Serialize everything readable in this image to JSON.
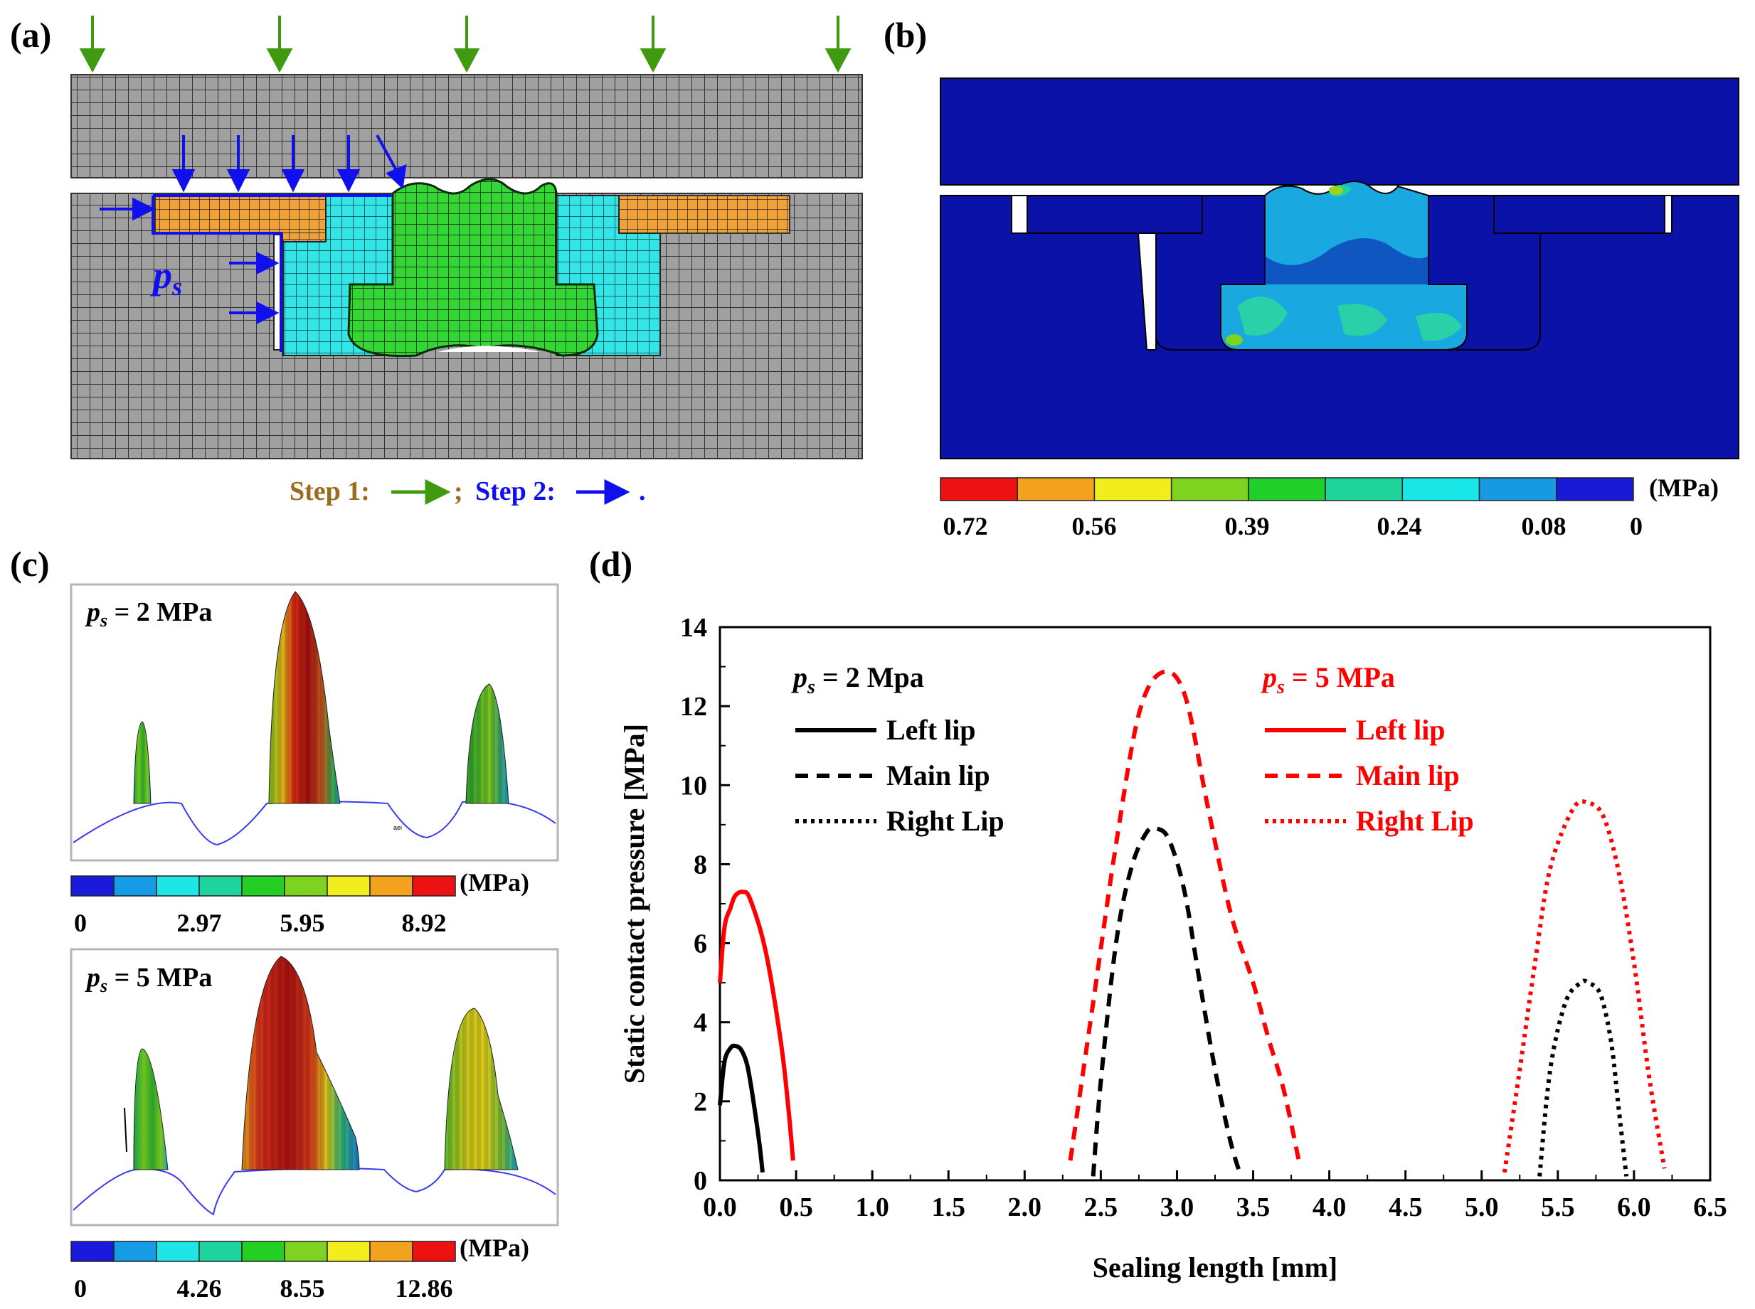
{
  "panels": {
    "a": {
      "label": "(a)",
      "pressure_symbol": "p",
      "pressure_subscript": "s",
      "step1": "Step 1:",
      "sep": ";",
      "step2": "Step 2:",
      "end": ".",
      "colors": {
        "mesh_gray": "#9a9a9a",
        "orange": "#f0a23a",
        "cyan": "#32e6e8",
        "green": "#2fd62f",
        "arrow_green": "#3f9a10",
        "arrow_blue": "#1010ee",
        "step1_text": "#9b6a1a"
      }
    },
    "b": {
      "label": "(b)",
      "unit": "(MPa)",
      "ticks": [
        "0.72",
        "0.56",
        "0.39",
        "0.24",
        "0.08",
        "0"
      ],
      "legend_colors": [
        "#ee1111",
        "#f2a21d",
        "#f2ee1e",
        "#7ed321",
        "#22cf2a",
        "#1ed49b",
        "#19e6e6",
        "#179ae2",
        "#1818d6"
      ]
    },
    "c": {
      "label": "(c)",
      "top": {
        "p": "p",
        "s": "s",
        "eq": " = 2 MPa",
        "unit": "(MPa)",
        "ticks": [
          "0",
          "2.97",
          "5.95",
          "8.92"
        ],
        "tiny": "aei"
      },
      "bottom": {
        "p": "p",
        "s": "s",
        "eq": " = 5 MPa",
        "unit": "(MPa)",
        "ticks": [
          "0",
          "4.26",
          "8.55",
          "12.86"
        ]
      },
      "legend_colors": [
        "#1a1adc",
        "#169ce6",
        "#1ee6e6",
        "#1ed49e",
        "#22cf22",
        "#7ed321",
        "#f2ee1e",
        "#f2a21d",
        "#ee1111"
      ]
    },
    "d": {
      "label": "(d)",
      "legend_left": {
        "p": "p",
        "s": "s",
        "eq": " = 2 Mpa",
        "items": [
          "Left lip",
          "Main lip",
          "Right Lip"
        ]
      },
      "legend_right": {
        "p": "p",
        "s": "s",
        "eq": " = 5 MPa",
        "items": [
          "Left lip",
          "Main lip",
          "Right Lip"
        ]
      }
    }
  },
  "chart_data": {
    "type": "line",
    "title": "",
    "xlabel": "Sealing length [mm]",
    "ylabel": "Static contact pressure [MPa]",
    "xlim": [
      0,
      6.5
    ],
    "ylim": [
      0,
      14
    ],
    "xticks": [
      "0.0",
      "0.5",
      "1.0",
      "1.5",
      "2.0",
      "2.5",
      "3.0",
      "3.5",
      "4.0",
      "4.5",
      "5.0",
      "5.5",
      "6.0",
      "6.5"
    ],
    "yticks": [
      "0",
      "2",
      "4",
      "6",
      "8",
      "10",
      "12",
      "14"
    ],
    "series": [
      {
        "name": "ps = 2 Mpa Left lip",
        "color": "#000000",
        "style": "solid",
        "x": [
          0.0,
          0.03,
          0.07,
          0.1,
          0.14,
          0.18,
          0.22,
          0.26,
          0.28
        ],
        "y": [
          1.9,
          3.0,
          3.35,
          3.4,
          3.3,
          2.9,
          2.0,
          0.9,
          0.2
        ]
      },
      {
        "name": "ps = 2 Mpa Main lip",
        "color": "#000000",
        "style": "dashed",
        "x": [
          2.45,
          2.5,
          2.6,
          2.7,
          2.8,
          2.87,
          2.95,
          3.05,
          3.15,
          3.25,
          3.35,
          3.42
        ],
        "y": [
          0.1,
          2.5,
          6.0,
          7.9,
          8.8,
          8.9,
          8.6,
          7.3,
          5.0,
          2.8,
          1.0,
          0.1
        ]
      },
      {
        "name": "ps = 2 Mpa Right Lip",
        "color": "#000000",
        "style": "dotted",
        "x": [
          5.38,
          5.45,
          5.55,
          5.65,
          5.7,
          5.78,
          5.85,
          5.9,
          5.95
        ],
        "y": [
          0.1,
          2.8,
          4.5,
          5.0,
          5.0,
          4.7,
          3.5,
          1.8,
          0.1
        ]
      },
      {
        "name": "ps = 5 MPa Left lip",
        "color": "#ff0000",
        "style": "solid",
        "x": [
          0.0,
          0.03,
          0.07,
          0.1,
          0.15,
          0.2,
          0.3,
          0.4,
          0.45,
          0.48
        ],
        "y": [
          5.0,
          6.4,
          6.9,
          7.2,
          7.3,
          7.1,
          5.8,
          3.5,
          1.8,
          0.5
        ]
      },
      {
        "name": "ps = 5 MPa Main lip",
        "color": "#ff0000",
        "style": "dashed",
        "x": [
          2.3,
          2.45,
          2.6,
          2.75,
          2.9,
          3.05,
          3.2,
          3.35,
          3.5,
          3.6,
          3.7,
          3.8
        ],
        "y": [
          0.5,
          4.5,
          8.5,
          11.8,
          12.85,
          12.3,
          9.5,
          6.8,
          5.0,
          3.6,
          2.3,
          0.5
        ]
      },
      {
        "name": "ps = 5 MPa Right Lip",
        "color": "#ff0000",
        "style": "dotted",
        "x": [
          5.15,
          5.25,
          5.35,
          5.45,
          5.6,
          5.7,
          5.8,
          5.9,
          6.0,
          6.1,
          6.2
        ],
        "y": [
          0.2,
          2.8,
          5.5,
          7.9,
          9.4,
          9.55,
          9.2,
          7.8,
          5.5,
          2.6,
          0.3
        ]
      }
    ]
  }
}
